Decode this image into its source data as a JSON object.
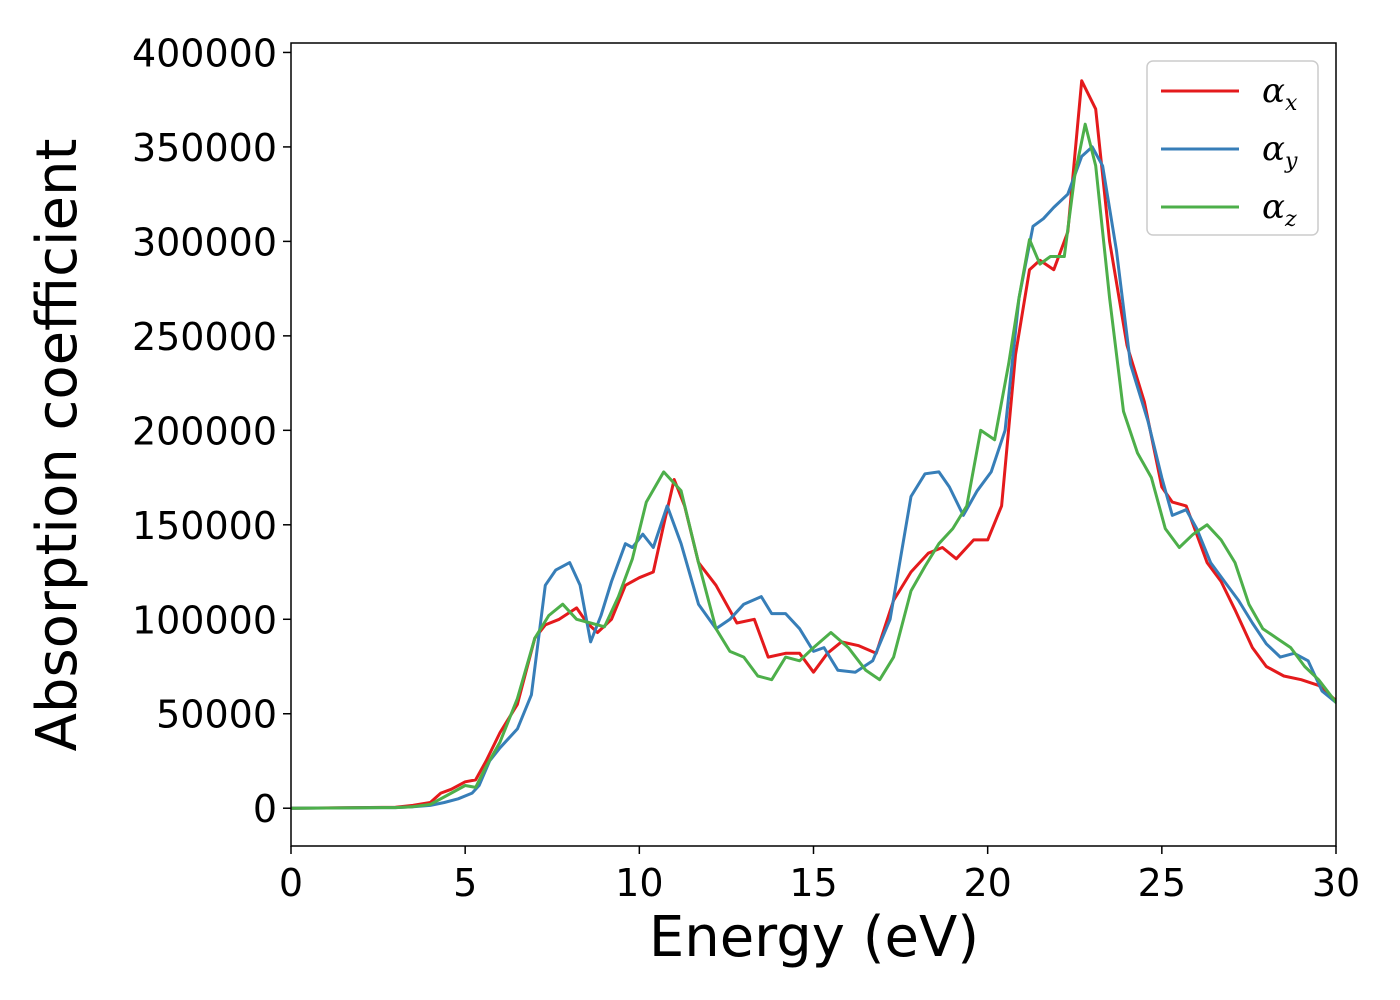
{
  "chart_data": {
    "type": "line",
    "xlabel": "Energy (eV)",
    "ylabel": "Absorption coefficient",
    "xlim": [
      0,
      30
    ],
    "ylim": [
      -20000,
      405000
    ],
    "xticks": [
      "0",
      "5",
      "10",
      "15",
      "20",
      "25",
      "30"
    ],
    "yticks": [
      "0",
      "50000",
      "100000",
      "150000",
      "200000",
      "250000",
      "300000",
      "350000",
      "400000"
    ],
    "grid": false,
    "legend_position": "top-right",
    "series": [
      {
        "name": "αx",
        "symbol": "α",
        "subscript": "x",
        "color": "#e41a1c",
        "x": [
          0,
          3,
          3.5,
          4,
          4.3,
          4.6,
          5,
          5.3,
          5.6,
          6,
          6.5,
          7,
          7.3,
          7.7,
          8.2,
          8.5,
          8.8,
          9.2,
          9.6,
          10,
          10.4,
          10.7,
          11,
          11.3,
          11.7,
          12.2,
          12.8,
          13.3,
          13.7,
          14.2,
          14.6,
          15,
          15.4,
          15.8,
          16.3,
          16.8,
          17.3,
          17.8,
          18.3,
          18.7,
          19.1,
          19.6,
          20,
          20.4,
          20.8,
          21.2,
          21.5,
          21.9,
          22.3,
          22.7,
          23.1,
          23.5,
          24,
          24.5,
          25,
          25.3,
          25.7,
          26,
          26.3,
          26.7,
          27.1,
          27.6,
          28,
          28.5,
          29,
          29.5,
          30
        ],
        "y": [
          0,
          500,
          1500,
          3000,
          8000,
          10000,
          14000,
          15000,
          25000,
          40000,
          55000,
          90000,
          97000,
          100000,
          106000,
          98000,
          93000,
          100000,
          118000,
          122000,
          125000,
          150000,
          174000,
          160000,
          130000,
          118000,
          98000,
          100000,
          80000,
          82000,
          82000,
          72000,
          82000,
          88000,
          86000,
          82000,
          110000,
          125000,
          135000,
          138000,
          132000,
          142000,
          142000,
          160000,
          240000,
          285000,
          290000,
          285000,
          305000,
          385000,
          370000,
          300000,
          245000,
          215000,
          170000,
          162000,
          160000,
          145000,
          130000,
          120000,
          105000,
          85000,
          75000,
          70000,
          68000,
          65000,
          57000
        ]
      },
      {
        "name": "αy",
        "symbol": "α",
        "subscript": "y",
        "color": "#377eb8",
        "x": [
          0,
          3,
          3.5,
          4,
          4.4,
          4.8,
          5.2,
          5.4,
          5.7,
          6,
          6.5,
          6.9,
          7.3,
          7.6,
          8,
          8.3,
          8.6,
          8.9,
          9.2,
          9.6,
          9.8,
          10.1,
          10.4,
          10.8,
          11.2,
          11.7,
          12.2,
          12.6,
          13,
          13.5,
          13.8,
          14.2,
          14.6,
          15,
          15.3,
          15.7,
          16.2,
          16.7,
          17.2,
          17.8,
          18.2,
          18.6,
          18.9,
          19.3,
          19.7,
          20.1,
          20.5,
          20.9,
          21.3,
          21.6,
          21.9,
          22.3,
          22.7,
          23,
          23.3,
          23.7,
          24.1,
          24.6,
          25,
          25.3,
          25.7,
          26,
          26.4,
          26.8,
          27.2,
          27.6,
          28,
          28.4,
          28.8,
          29.2,
          29.6,
          30
        ],
        "y": [
          0,
          300,
          800,
          1500,
          3000,
          5000,
          8000,
          12000,
          25000,
          32000,
          42000,
          60000,
          118000,
          126000,
          130000,
          118000,
          88000,
          102000,
          120000,
          140000,
          138000,
          145000,
          138000,
          160000,
          140000,
          108000,
          95000,
          100000,
          108000,
          112000,
          103000,
          103000,
          95000,
          83000,
          85000,
          73000,
          72000,
          78000,
          100000,
          165000,
          177000,
          178000,
          170000,
          155000,
          168000,
          178000,
          200000,
          270000,
          308000,
          312000,
          318000,
          325000,
          345000,
          350000,
          340000,
          295000,
          235000,
          205000,
          175000,
          155000,
          158000,
          148000,
          130000,
          120000,
          110000,
          98000,
          87000,
          80000,
          82000,
          78000,
          62000,
          56000
        ]
      },
      {
        "name": "αz",
        "symbol": "α",
        "subscript": "z",
        "color": "#4daf4a",
        "x": [
          0,
          3,
          3.5,
          4,
          4.5,
          5,
          5.3,
          5.6,
          6,
          6.5,
          7,
          7.4,
          7.8,
          8.2,
          8.6,
          9,
          9.4,
          9.8,
          10.2,
          10.7,
          11.2,
          11.7,
          12.2,
          12.6,
          13,
          13.4,
          13.8,
          14.2,
          14.6,
          15,
          15.5,
          16,
          16.5,
          16.9,
          17.3,
          17.8,
          18.2,
          18.6,
          19,
          19.4,
          19.8,
          20.2,
          20.6,
          20.9,
          21.2,
          21.5,
          21.8,
          22.2,
          22.5,
          22.8,
          23.1,
          23.5,
          23.9,
          24.3,
          24.7,
          25.1,
          25.5,
          25.9,
          26.3,
          26.7,
          27.1,
          27.5,
          27.9,
          28.3,
          28.7,
          29.1,
          29.5,
          30
        ],
        "y": [
          0,
          300,
          800,
          2000,
          7000,
          12000,
          11000,
          22000,
          35000,
          58000,
          90000,
          102000,
          108000,
          100000,
          98000,
          96000,
          112000,
          132000,
          162000,
          178000,
          168000,
          130000,
          95000,
          83000,
          80000,
          70000,
          68000,
          80000,
          78000,
          85000,
          93000,
          85000,
          73000,
          68000,
          80000,
          115000,
          128000,
          140000,
          148000,
          160000,
          200000,
          195000,
          235000,
          270000,
          301000,
          288000,
          292000,
          292000,
          335000,
          362000,
          340000,
          270000,
          210000,
          188000,
          175000,
          148000,
          138000,
          145000,
          150000,
          142000,
          130000,
          108000,
          95000,
          90000,
          85000,
          75000,
          68000,
          56000
        ]
      }
    ]
  }
}
